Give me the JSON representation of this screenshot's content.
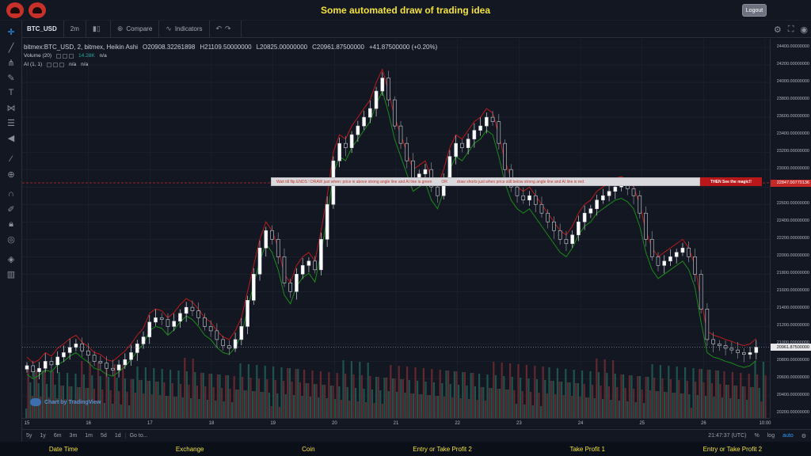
{
  "app": {
    "title": "Some automated draw of trading idea",
    "logout_label": "Logout"
  },
  "toolbar": {
    "symbol": "BTC_USD",
    "interval": "2m",
    "compare_label": "Compare",
    "indicators_label": "Indicators"
  },
  "legend": {
    "main": "bitmex:BTC_USD, 2, bitmex, Heikin Ashi",
    "open": "O20908.32261898",
    "high": "H21109.50000000",
    "low": "L20825.00000000",
    "close": "C20961.87500000",
    "change": "+41.87500000 (+0.20%)",
    "volume_label": "Volume (20)",
    "volume_value": "14.28K",
    "volume_na": "n/a",
    "ai_label": "AI (1, 1)",
    "ai_na1": "n/a",
    "ai_na2": "n/a"
  },
  "banner": {
    "part1": "Wait till flip ENDS  !   DRAW just when:  price is above strong angle line and AI line is green",
    "or": "OR",
    "part2": "draw shorts just when price still below strong angle line and AI line is red",
    "cta": "THEN See the magic!!"
  },
  "price_axis": {
    "labels": [
      "24400.00000000",
      "24200.00000000",
      "24000.00000000",
      "23800.00000000",
      "23600.00000000",
      "23400.00000000",
      "23200.00000000",
      "23000.00000000",
      "22800.00000000",
      "22600.00000000",
      "22400.00000000",
      "22200.00000000",
      "22000.00000000",
      "21800.00000000",
      "21600.00000000",
      "21400.00000000",
      "21200.00000000",
      "21000.00000000",
      "20800.00000000",
      "20600.00000000",
      "20400.00000000",
      "20200.00000000"
    ],
    "marker_red": "22847.00770136",
    "marker_last": "20961.87500000"
  },
  "time_axis": {
    "labels": [
      "15",
      "16",
      "17",
      "18",
      "19",
      "20",
      "21",
      "22",
      "23",
      "24",
      "25",
      "26",
      "10:00"
    ]
  },
  "watermark": "Chart by TradingView",
  "bottom_bar": {
    "ranges": [
      "5y",
      "1y",
      "6m",
      "3m",
      "1m",
      "5d",
      "1d"
    ],
    "goto": "Go to...",
    "clock": "21:47:37 (UTC)",
    "pct": "%",
    "log": "log",
    "auto": "auto"
  },
  "footer": {
    "items": [
      "Date Time",
      "Exchange",
      "Coin",
      "Entry or Take Profit 2",
      "Take Profit 1",
      "Entry or Take Profit 2"
    ]
  },
  "chart_data": {
    "type": "heikin-ashi candlestick",
    "ylim": [
      20150,
      24500
    ],
    "close_series": [
      20750,
      20680,
      20720,
      20800,
      20760,
      20850,
      20900,
      20960,
      21000,
      20920,
      20870,
      20800,
      20780,
      20720,
      20700,
      20760,
      20820,
      20900,
      21000,
      21080,
      21250,
      21300,
      21280,
      21200,
      21260,
      21350,
      21420,
      21380,
      21300,
      21200,
      21150,
      21050,
      20980,
      20950,
      21050,
      21200,
      21500,
      21800,
      22100,
      22300,
      22200,
      22000,
      21700,
      21600,
      21800,
      21900,
      21950,
      21850,
      22200,
      22600,
      23100,
      23300,
      23250,
      23400,
      23500,
      23600,
      23700,
      23900,
      24050,
      23800,
      23500,
      23300,
      23100,
      22900,
      22950,
      23000,
      22800,
      22700,
      22900,
      23150,
      23300,
      23250,
      23350,
      23450,
      23500,
      23600,
      23550,
      23300,
      23000,
      22800,
      22700,
      22650,
      22700,
      22600,
      22500,
      22400,
      22300,
      22200,
      22150,
      22250,
      22400,
      22500,
      22550,
      22650,
      22700,
      22750,
      22800,
      22820,
      22780,
      22700,
      22500,
      22200,
      22000,
      21900,
      21950,
      22000,
      22050,
      22100,
      22000,
      21800,
      21400,
      21050,
      21000,
      20980,
      20950,
      20930,
      20900,
      20880,
      20900,
      20962
    ],
    "ai_green": [
      20650,
      20600,
      20640,
      20700,
      20680,
      20760,
      20800,
      20860,
      20900,
      20840,
      20790,
      20720,
      20700,
      20650,
      20630,
      20680,
      20740,
      20820,
      20920,
      21000,
      21150,
      21200,
      21180,
      21100,
      21160,
      21250,
      21320,
      21280,
      21200,
      21100,
      21050,
      20960,
      20900,
      20880,
      20960,
      21100,
      21400,
      21680,
      21950,
      22150,
      22050,
      21850,
      21560,
      21460,
      21660,
      21760,
      21810,
      21710,
      22050,
      22450,
      22950,
      23150,
      23100,
      23250,
      23350,
      23450,
      23550,
      23750,
      23900,
      23650,
      23350,
      23150,
      22950,
      22750,
      22800,
      22850,
      22650,
      22550,
      22750,
      23000,
      23150,
      23100,
      23200,
      23300,
      23350,
      23450,
      23400,
      23150,
      22850,
      22650,
      22550,
      22500,
      22550,
      22450,
      22350,
      22250,
      22150,
      22050,
      22000,
      22100,
      22250,
      22350,
      22400,
      22500,
      22550,
      22600,
      22650,
      22670,
      22630,
      22550,
      22350,
      22050,
      21850,
      21750,
      21800,
      21850,
      21900,
      21950,
      21850,
      21650,
      21250,
      20900,
      20850,
      20830,
      20800,
      20780,
      20750,
      20730,
      20750,
      20810
    ],
    "ai_red": [
      20850,
      20780,
      20820,
      20900,
      20860,
      20950,
      21000,
      21060,
      21100,
      21020,
      20970,
      20900,
      20880,
      20820,
      20800,
      20860,
      20920,
      21000,
      21100,
      21180,
      21350,
      21400,
      21380,
      21300,
      21360,
      21450,
      21520,
      21480,
      21400,
      21300,
      21250,
      21150,
      21080,
      21050,
      21150,
      21300,
      21600,
      21900,
      22200,
      22400,
      22300,
      22100,
      21800,
      21700,
      21900,
      22000,
      22050,
      21950,
      22300,
      22700,
      23200,
      23400,
      23350,
      23500,
      23600,
      23700,
      23800,
      24000,
      24150,
      23900,
      23600,
      23400,
      23200,
      23000,
      23050,
      23100,
      22900,
      22800,
      23000,
      23250,
      23400,
      23350,
      23450,
      23550,
      23600,
      23700,
      23650,
      23400,
      23100,
      22900,
      22800,
      22750,
      22800,
      22700,
      22600,
      22500,
      22400,
      22300,
      22250,
      22350,
      22500,
      22600,
      22650,
      22750,
      22800,
      22850,
      22900,
      22920,
      22880,
      22800,
      22600,
      22300,
      22100,
      22000,
      22050,
      22100,
      22150,
      22200,
      22100,
      21900,
      21500,
      21150,
      21100,
      21080,
      21050,
      21030,
      21000,
      20980,
      21000,
      21060
    ],
    "strong_angle_line": 22847.0077,
    "last_price": 20961.875
  }
}
